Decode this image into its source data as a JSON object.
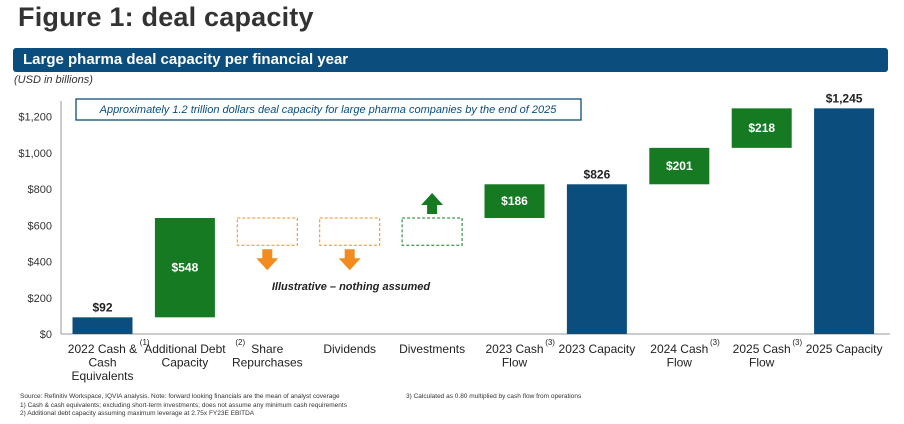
{
  "figure_title": "Figure 1: deal capacity",
  "banner_title": "Large pharma deal capacity per financial year",
  "units": "(USD in billions)",
  "annotation_box": "Approximately 1.2 trillion dollars deal capacity for large pharma companies by the end of 2025",
  "illustrative_note": "Illustrative – nothing assumed",
  "colors": {
    "blue": "#0b4d7d",
    "green": "#157a22",
    "orange": "#f28c1e",
    "banner": "#0b4d7d"
  },
  "chart_data": {
    "type": "bar",
    "subtype": "waterfall",
    "ylim": [
      0,
      1300
    ],
    "yticks": [
      0,
      200,
      400,
      600,
      800,
      1000,
      1200
    ],
    "ytick_labels": [
      "$0",
      "$200",
      "$400",
      "$600",
      "$800",
      "$1,000",
      "$1,200"
    ],
    "grid": false,
    "categories": [
      {
        "lines": [
          "2022 Cash &",
          "Cash",
          "Equivalents"
        ],
        "footnote": "(1)"
      },
      {
        "lines": [
          "Additional Debt",
          "Capacity"
        ],
        "footnote": "(2)"
      },
      {
        "lines": [
          "Share",
          "Repurchases"
        ],
        "footnote": ""
      },
      {
        "lines": [
          "Dividends"
        ],
        "footnote": ""
      },
      {
        "lines": [
          "Divestments"
        ],
        "footnote": ""
      },
      {
        "lines": [
          "2023 Cash",
          "Flow"
        ],
        "footnote": "(3)"
      },
      {
        "lines": [
          "2023 Capacity"
        ],
        "footnote": ""
      },
      {
        "lines": [
          "2024 Cash",
          "Flow"
        ],
        "footnote": "(3)"
      },
      {
        "lines": [
          "2025 Cash",
          "Flow"
        ],
        "footnote": "(3)"
      },
      {
        "lines": [
          "2025 Capacity"
        ],
        "footnote": ""
      }
    ],
    "bars": [
      {
        "kind": "total",
        "start": 0,
        "end": 92,
        "label": "$92",
        "label_pos": "above"
      },
      {
        "kind": "increase",
        "start": 92,
        "end": 640,
        "label": "$548",
        "label_pos": "inside"
      },
      {
        "kind": "placeholder",
        "start": 490,
        "end": 640,
        "label": "",
        "arrow": "down"
      },
      {
        "kind": "placeholder",
        "start": 490,
        "end": 640,
        "label": "",
        "arrow": "down"
      },
      {
        "kind": "placeholder-green",
        "start": 490,
        "end": 640,
        "label": "",
        "arrow": "up"
      },
      {
        "kind": "increase",
        "start": 640,
        "end": 826,
        "label": "$186",
        "label_pos": "inside"
      },
      {
        "kind": "total",
        "start": 0,
        "end": 826,
        "label": "$826",
        "label_pos": "above"
      },
      {
        "kind": "increase",
        "start": 826,
        "end": 1027,
        "label": "$201",
        "label_pos": "inside"
      },
      {
        "kind": "increase",
        "start": 1027,
        "end": 1245,
        "label": "$218",
        "label_pos": "inside"
      },
      {
        "kind": "total",
        "start": 0,
        "end": 1245,
        "label": "$1,245",
        "label_pos": "above"
      }
    ]
  },
  "footnotes": [
    "Source: Refinitiv Workspace, IQVIA analysis. Note: forward looking financials are the mean of analyst coverage",
    "1)      Cash & cash equivalents; excluding short-term investments; does not assume any minimum cash requirements",
    "2)      Additional debt capacity assuming maximum leverage at 2.75x FY23E EBITDA"
  ],
  "footnote_right": "3)      Calculated as 0.80 multiplied by cash flow from operations"
}
